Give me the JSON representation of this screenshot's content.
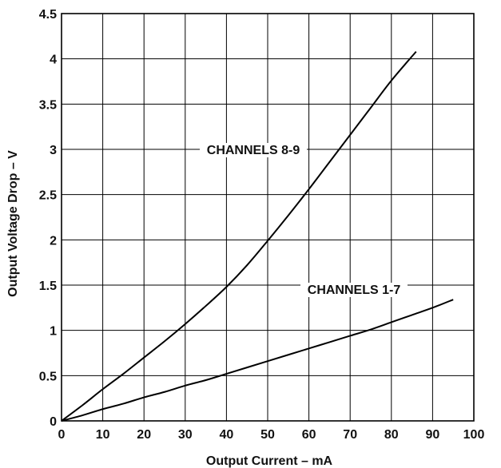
{
  "chart_data": {
    "type": "line",
    "title": "",
    "xlabel": "Output Current – mA",
    "ylabel": "Output Voltage Drop – V",
    "xlim": [
      0,
      100
    ],
    "ylim": [
      0,
      4.5
    ],
    "x_ticks": [
      "0",
      "10",
      "20",
      "30",
      "40",
      "50",
      "60",
      "70",
      "80",
      "90",
      "100"
    ],
    "y_ticks": [
      "0",
      "0.5",
      "1",
      "1.5",
      "2",
      "2.5",
      "3",
      "3.5",
      "4",
      "4.5"
    ],
    "grid": true,
    "line_color": "#000000",
    "grid_color": "#000000",
    "series": [
      {
        "name": "CHANNELS 8-9",
        "x": [
          0,
          5,
          10,
          15,
          20,
          25,
          30,
          35,
          40,
          45,
          50,
          55,
          60,
          65,
          70,
          75,
          80,
          86
        ],
        "y": [
          0,
          0.17,
          0.35,
          0.52,
          0.7,
          0.88,
          1.07,
          1.27,
          1.48,
          1.72,
          1.99,
          2.27,
          2.56,
          2.86,
          3.16,
          3.46,
          3.76,
          4.08
        ]
      },
      {
        "name": "CHANNELS 1-7",
        "x": [
          0,
          5,
          10,
          15,
          20,
          25,
          30,
          35,
          40,
          45,
          50,
          55,
          60,
          65,
          70,
          75,
          80,
          85,
          90,
          95
        ],
        "y": [
          0,
          0.06,
          0.13,
          0.19,
          0.26,
          0.32,
          0.39,
          0.45,
          0.52,
          0.59,
          0.66,
          0.73,
          0.8,
          0.87,
          0.94,
          1.01,
          1.09,
          1.17,
          1.25,
          1.34
        ]
      }
    ]
  }
}
